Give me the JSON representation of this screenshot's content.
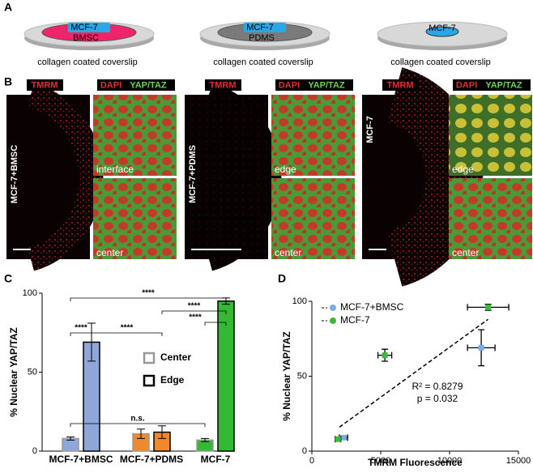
{
  "panel_labels": [
    "A",
    "B",
    "C",
    "D"
  ],
  "panel_a": {
    "dishes": [
      {
        "cells": "MCF-7",
        "layer": "BMSC",
        "caption": "collagen coated coverslip"
      },
      {
        "cells": "MCF-7",
        "layer": "PDMS",
        "caption": "collagen coated coverslip"
      },
      {
        "cells": "MCF-7",
        "caption": "collagen coated coverslip"
      }
    ]
  },
  "panel_b": {
    "stain_tmrm": "TMRM",
    "stain_dapi": "DAPI",
    "stain_yap": "YAP/TAZ",
    "groups": [
      {
        "side_label": "MCF-7+BMSC",
        "top_label": "interface",
        "bottom_label": "center"
      },
      {
        "side_label": "MCF-7+PDMS",
        "top_label": "edge",
        "bottom_label": "center"
      },
      {
        "side_label": "MCF-7",
        "top_label": "edge",
        "bottom_label": "center"
      }
    ]
  },
  "chart_data": [
    {
      "type": "bar",
      "ylabel": "% Nuclear YAP/TAZ",
      "categories": [
        "MCF-7+BMSC",
        "MCF-7+PDMS",
        "MCF-7"
      ],
      "category_colors": [
        "#8ea6d8",
        "#f0892e",
        "#35b935"
      ],
      "series": [
        {
          "name": "Center",
          "color": "#999999",
          "values": [
            8,
            11,
            7
          ],
          "errors": [
            1,
            3,
            1
          ]
        },
        {
          "name": "Edge",
          "color": "#000000",
          "values": [
            69,
            12,
            95
          ],
          "errors": [
            12,
            4,
            2
          ]
        }
      ],
      "ylim": [
        0,
        100
      ],
      "yticks": [
        0,
        50,
        100
      ],
      "annotations": [
        "****",
        "****",
        "****",
        "****",
        "****",
        "n.s."
      ]
    },
    {
      "type": "scatter",
      "xlabel": "TMRM Fluorescence",
      "ylabel": "% Nuclear YAP/TAZ",
      "series": [
        {
          "name": "MCF-7+BMSC",
          "color": "#7aaee6",
          "x": [
            2300,
            12300
          ],
          "y": [
            9,
            69
          ],
          "xerr": [
            300,
            1000
          ],
          "yerr": [
            1,
            12
          ]
        },
        {
          "name": "MCF-7",
          "color": "#3cb83c",
          "x": [
            1900,
            5300,
            12800
          ],
          "y": [
            8,
            64,
            96
          ],
          "xerr": [
            200,
            500,
            1500
          ],
          "yerr": [
            1,
            4,
            2
          ]
        }
      ],
      "fit": {
        "x": [
          2000,
          12800
        ],
        "y": [
          16,
          88
        ]
      },
      "xlim": [
        0,
        15000
      ],
      "xticks": [
        0,
        5000,
        10000,
        15000
      ],
      "ylim": [
        0,
        100
      ],
      "yticks": [
        0,
        50,
        100
      ],
      "annotations": [
        "R² = 0.8279",
        "p = 0.032"
      ],
      "legend": "upper-left"
    }
  ]
}
